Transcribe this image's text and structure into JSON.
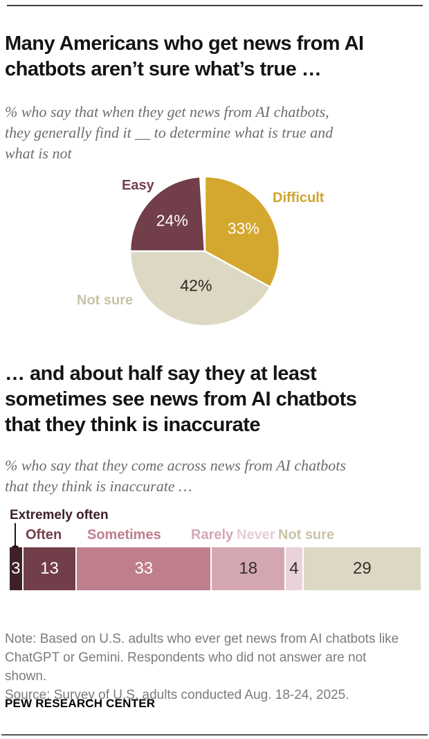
{
  "page": {
    "title1": "Many Americans who get news from AI\nchatbots aren’t sure what’s true …",
    "subtitle1": "% who say that when they get news from AI chatbots,\nthey generally find it __ to determine what is true and\nwhat is not",
    "title2": "… and about half say they at least\nsometimes see news from AI chatbots\nthat they think is inaccurate",
    "subtitle2": "% who say that they come across news from AI chatbots\nthat they think is inaccurate …",
    "note": "Note: Based on U.S. adults who ever get news from AI chatbots like\nChatGPT or Gemini. Respondents who did not answer are not\nshown.",
    "source": "Source: Survey of U.S. adults conducted Aug. 18-24, 2025.",
    "footer": "PEW RESEARCH CENTER"
  },
  "colors": {
    "maroon": "#723e4a",
    "dark_maroon": "#3d2127",
    "gold": "#d4a72e",
    "rose": "#be7e8c",
    "pink": "#d3a7b2",
    "light_pink": "#e9d2da",
    "beige": "#ddd8c3",
    "beige_label": "#c9c3a5",
    "title_text": "#141414",
    "muted_text": "#7b7b78"
  },
  "chart_data": [
    {
      "type": "pie",
      "title": "Many Americans who get news from AI chatbots aren’t sure what’s true …",
      "start_angle_deg": 0,
      "clockwise": true,
      "slices": [
        {
          "label": "Difficult",
          "value": 33,
          "pct_label": "33%",
          "color": "#d4a72e",
          "value_color": "#ffffff",
          "label_r": 0.6
        },
        {
          "label": "Not sure",
          "value": 42,
          "pct_label": "42%",
          "color": "#ddd8c3",
          "value_color": "#2b2621",
          "label_r": 0.47
        },
        {
          "label": "Easy",
          "value": 24,
          "pct_label": "24%",
          "color": "#723e4a",
          "value_color": "#ffffff",
          "label_r": 0.6
        }
      ],
      "outer_labels": [
        {
          "text": "Easy",
          "color": "#723e4a"
        },
        {
          "text": "Difficult",
          "color": "#d1a42e"
        },
        {
          "text": "Not sure",
          "color": "#c9c3a5"
        }
      ]
    },
    {
      "type": "stacked_bar",
      "title": "… and about half say they at least sometimes see news from AI chatbots that they think is inaccurate",
      "total": 100,
      "segments": [
        {
          "label": "Extremely often",
          "value": 3,
          "color": "#3d2127",
          "text_color": "#ffffff",
          "label_color": "#3d2127"
        },
        {
          "label": "Often",
          "value": 13,
          "color": "#723e4a",
          "text_color": "#ffffff",
          "label_color": "#723e4a"
        },
        {
          "label": "Sometimes",
          "value": 33,
          "color": "#be7e8c",
          "text_color": "#ffffff",
          "label_color": "#be7e8c"
        },
        {
          "label": "Rarely",
          "value": 18,
          "color": "#d3a7b2",
          "text_color": "#33302c",
          "label_color": "#d3a7b2"
        },
        {
          "label": "Never",
          "value": 4,
          "color": "#e9d2da",
          "text_color": "#33302c",
          "label_color": "#e6ccd6"
        },
        {
          "label": "Not sure",
          "value": 29,
          "color": "#ddd8c3",
          "text_color": "#33302c",
          "label_color": "#c9c3a5"
        }
      ]
    }
  ]
}
